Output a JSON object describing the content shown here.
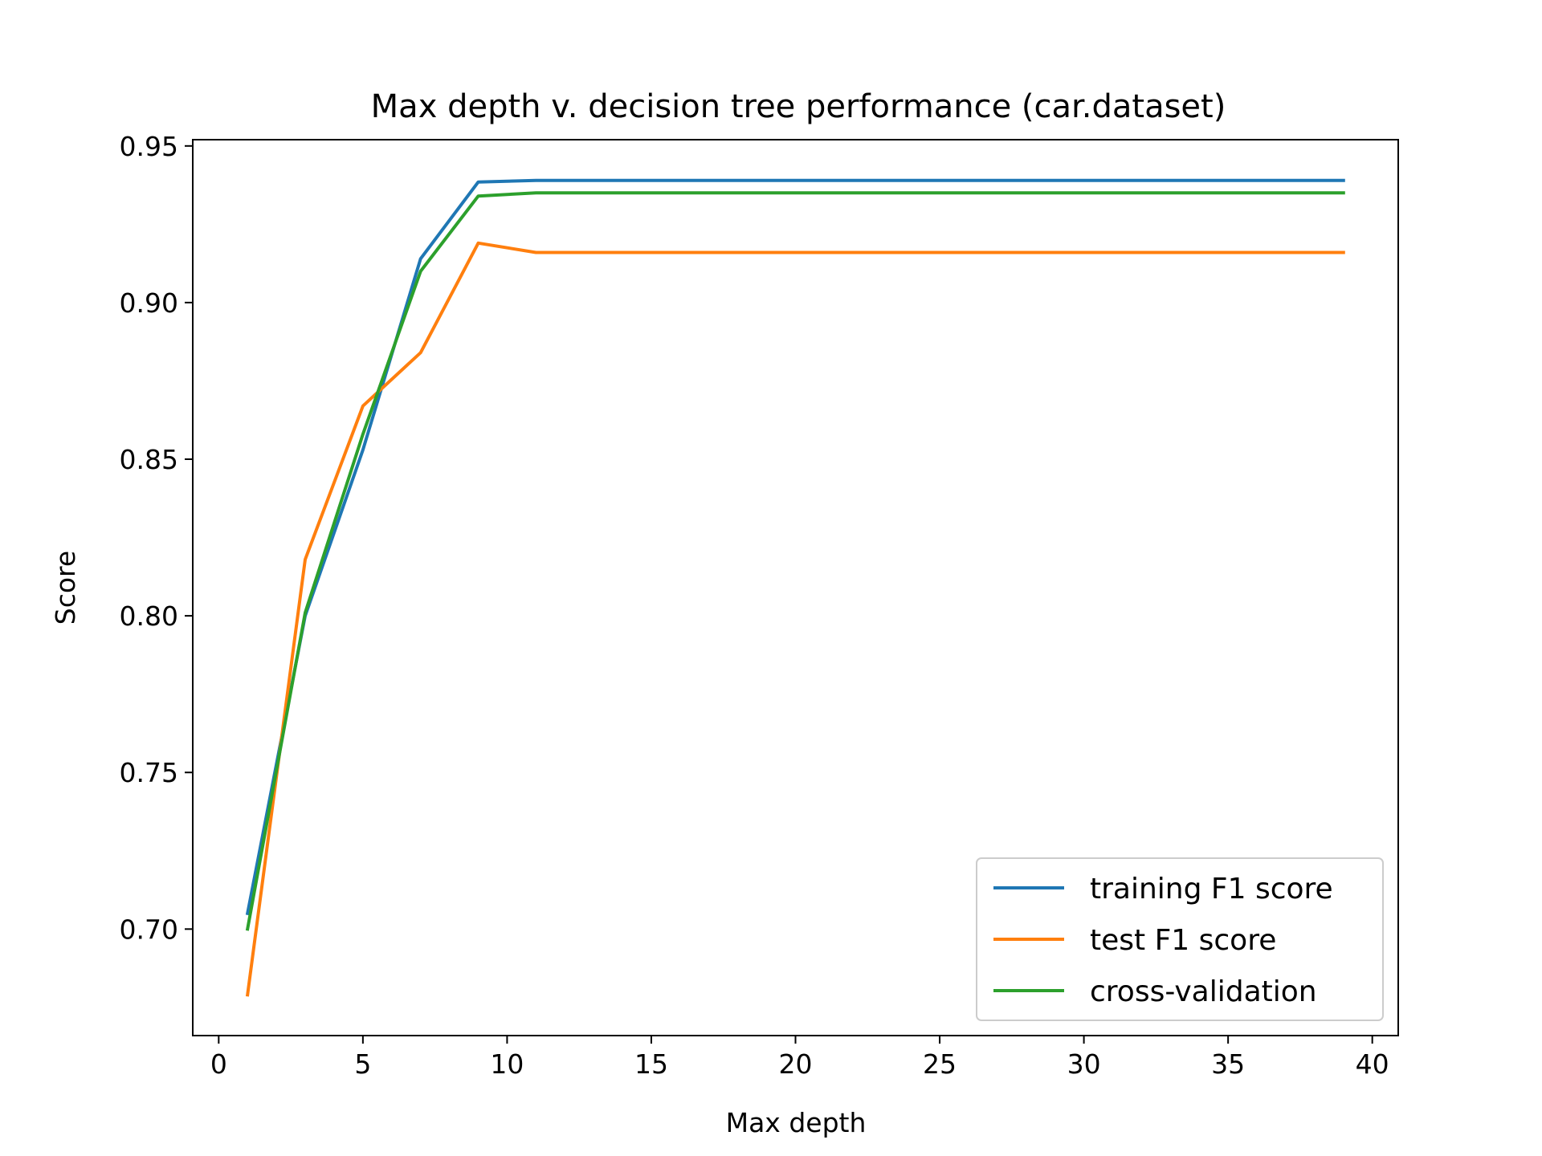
{
  "chart_data": {
    "type": "line",
    "title": "Max depth v. decision tree performance (car.dataset)",
    "xlabel": "Max depth",
    "ylabel": "Score",
    "xlim": [
      -0.9,
      40.9
    ],
    "ylim": [
      0.666,
      0.952
    ],
    "xticks": [
      0,
      5,
      10,
      15,
      20,
      25,
      30,
      35,
      40
    ],
    "yticks": [
      0.7,
      0.75,
      0.8,
      0.85,
      0.9,
      0.95
    ],
    "xtick_labels": [
      "0",
      "5",
      "10",
      "15",
      "20",
      "25",
      "30",
      "35",
      "40"
    ],
    "ytick_labels": [
      "0.70",
      "0.75",
      "0.80",
      "0.85",
      "0.90",
      "0.95"
    ],
    "grid": false,
    "legend_position": "lower-right",
    "x": [
      1,
      3,
      5,
      7,
      9,
      11,
      13,
      15,
      17,
      19,
      21,
      23,
      25,
      27,
      29,
      31,
      33,
      35,
      37,
      39
    ],
    "series": [
      {
        "name": "training F1 score",
        "color": "#1f77b4",
        "values": [
          0.705,
          0.8,
          0.853,
          0.914,
          0.9385,
          0.939,
          0.939,
          0.939,
          0.939,
          0.939,
          0.939,
          0.939,
          0.939,
          0.939,
          0.939,
          0.939,
          0.939,
          0.939,
          0.939,
          0.939
        ]
      },
      {
        "name": "test F1 score",
        "color": "#ff7f0e",
        "values": [
          0.679,
          0.818,
          0.867,
          0.884,
          0.919,
          0.916,
          0.916,
          0.916,
          0.916,
          0.916,
          0.916,
          0.916,
          0.916,
          0.916,
          0.916,
          0.916,
          0.916,
          0.916,
          0.916,
          0.916
        ]
      },
      {
        "name": "cross-validation",
        "color": "#2ca02c",
        "values": [
          0.7,
          0.801,
          0.858,
          0.91,
          0.934,
          0.935,
          0.935,
          0.935,
          0.935,
          0.935,
          0.935,
          0.935,
          0.935,
          0.935,
          0.935,
          0.935,
          0.935,
          0.935,
          0.935,
          0.935
        ]
      }
    ]
  }
}
